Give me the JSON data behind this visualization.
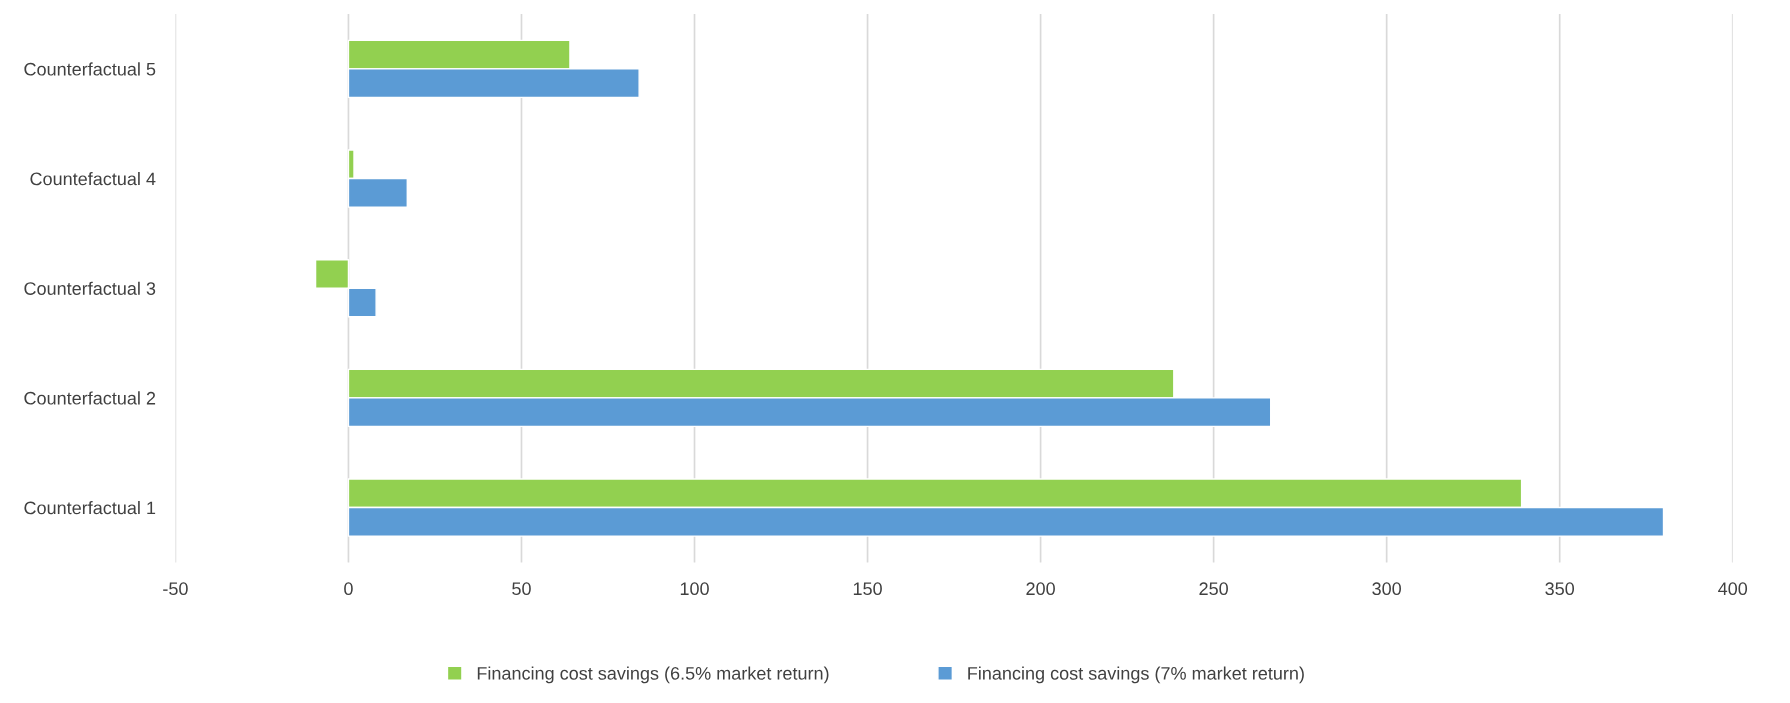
{
  "chart_data": {
    "type": "bar",
    "orientation": "horizontal",
    "categories": [
      "Counterfactual 5",
      "Countefactual 4",
      "Counterfactual 3",
      "Counterfactual 2",
      "Counterfactual 1"
    ],
    "series": [
      {
        "name": "Financing cost savings (6.5% market return)",
        "color": "#92d050",
        "values": [
          64,
          1.6,
          -9.5,
          238.5,
          339
        ]
      },
      {
        "name": "Financing cost savings (7% market return)",
        "color": "#5b9bd5",
        "values": [
          84,
          17,
          8,
          266.5,
          380
        ]
      }
    ],
    "xlim": [
      -50,
      400
    ],
    "xticks": [
      -50,
      0,
      50,
      100,
      150,
      200,
      250,
      300,
      350,
      400
    ],
    "grid": "x",
    "legend": "bottom"
  }
}
